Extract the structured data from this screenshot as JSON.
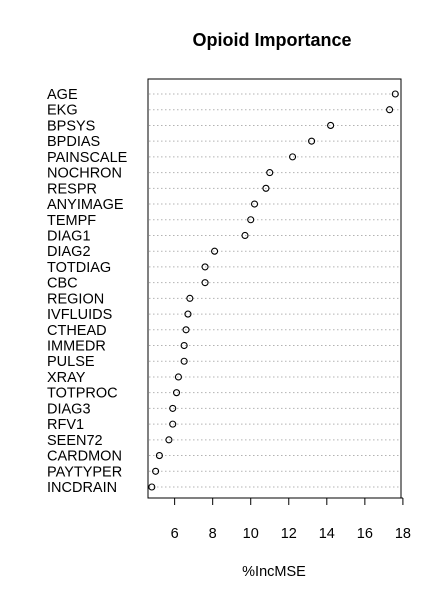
{
  "chart_data": {
    "type": "scatter",
    "title": "Opioid Importance",
    "xlabel": "%IncMSE",
    "ylabel": "",
    "xlim": [
      4.6,
      17.9
    ],
    "xticks": [
      6,
      8,
      10,
      12,
      14,
      16,
      18
    ],
    "grid": "horizontal dotted",
    "legend": "none",
    "variables": [
      "AGE",
      "EKG",
      "BPSYS",
      "BPDIAS",
      "PAINSCALE",
      "NOCHRON",
      "RESPR",
      "ANYIMAGE",
      "TEMPF",
      "DIAG1",
      "DIAG2",
      "TOTDIAG",
      "CBC",
      "REGION",
      "IVFLUIDS",
      "CTHEAD",
      "IMMEDR",
      "PULSE",
      "XRAY",
      "TOTPROC",
      "DIAG3",
      "RFV1",
      "SEEN72",
      "CARDMON",
      "PAYTYPER",
      "INCDRAIN"
    ],
    "values": [
      17.6,
      17.3,
      14.2,
      13.2,
      12.2,
      11.0,
      10.8,
      10.2,
      10.0,
      9.7,
      8.1,
      7.6,
      7.6,
      6.8,
      6.7,
      6.6,
      6.5,
      6.5,
      6.2,
      6.1,
      5.9,
      5.9,
      5.7,
      5.2,
      5.0,
      4.8
    ]
  }
}
